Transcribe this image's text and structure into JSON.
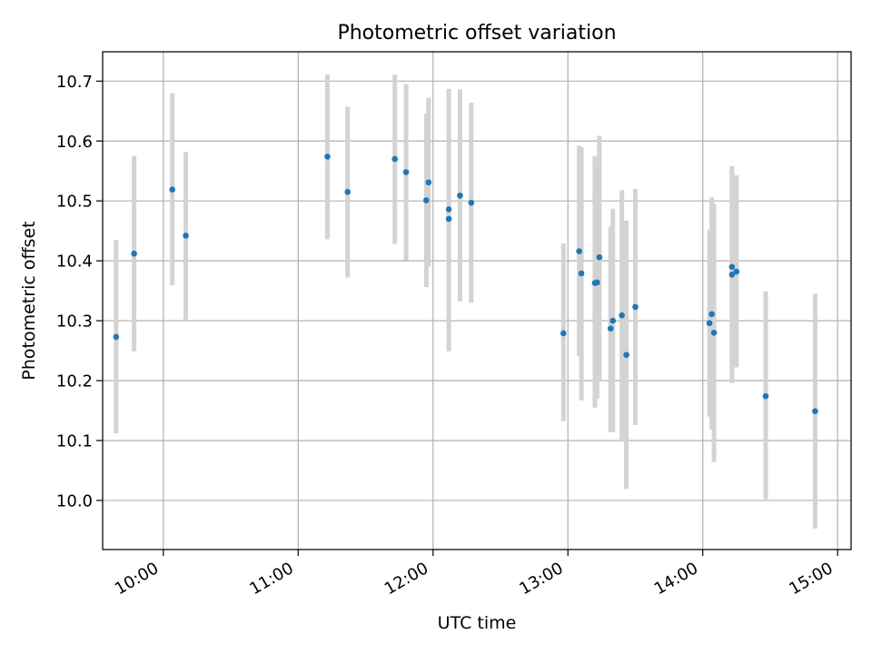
{
  "chart_data": {
    "type": "scatter",
    "title": "Photometric offset variation",
    "xlabel": "UTC time",
    "ylabel": "Photometric offset",
    "x_ticks": [
      "10:00",
      "11:00",
      "12:00",
      "13:00",
      "14:00",
      "15:00"
    ],
    "y_ticks": [
      "10.0",
      "10.1",
      "10.2",
      "10.3",
      "10.4",
      "10.5",
      "10.6",
      "10.7"
    ],
    "xlim": [
      "09:33",
      "15:06"
    ],
    "ylim": [
      9.918,
      10.749
    ],
    "grid": true,
    "marker_color": "#1f77b4",
    "errorbar_color": "#d3d3d3",
    "points": [
      {
        "t": "09:39",
        "y": 10.273,
        "lo": 10.112,
        "hi": 10.435
      },
      {
        "t": "09:47",
        "y": 10.412,
        "lo": 10.249,
        "hi": 10.575
      },
      {
        "t": "10:04",
        "y": 10.519,
        "lo": 10.359,
        "hi": 10.68
      },
      {
        "t": "10:10",
        "y": 10.442,
        "lo": 10.3,
        "hi": 10.582
      },
      {
        "t": "11:13",
        "y": 10.574,
        "lo": 10.436,
        "hi": 10.711
      },
      {
        "t": "11:22",
        "y": 10.515,
        "lo": 10.372,
        "hi": 10.657
      },
      {
        "t": "11:43",
        "y": 10.57,
        "lo": 10.428,
        "hi": 10.711
      },
      {
        "t": "11:48",
        "y": 10.548,
        "lo": 10.401,
        "hi": 10.695
      },
      {
        "t": "11:57",
        "y": 10.501,
        "lo": 10.356,
        "hi": 10.646
      },
      {
        "t": "11:58",
        "y": 10.531,
        "lo": 10.39,
        "hi": 10.672
      },
      {
        "t": "12:07",
        "y": 10.47,
        "lo": 10.249,
        "hi": 10.687
      },
      {
        "t": "12:07",
        "y": 10.486,
        "lo": 10.283,
        "hi": 10.687
      },
      {
        "t": "12:12",
        "y": 10.509,
        "lo": 10.332,
        "hi": 10.686
      },
      {
        "t": "12:17",
        "y": 10.497,
        "lo": 10.33,
        "hi": 10.664
      },
      {
        "t": "12:58",
        "y": 10.279,
        "lo": 10.132,
        "hi": 10.429
      },
      {
        "t": "13:05",
        "y": 10.416,
        "lo": 10.241,
        "hi": 10.592
      },
      {
        "t": "13:06",
        "y": 10.379,
        "lo": 10.167,
        "hi": 10.59
      },
      {
        "t": "13:12",
        "y": 10.363,
        "lo": 10.155,
        "hi": 10.575
      },
      {
        "t": "13:13",
        "y": 10.364,
        "lo": 10.17,
        "hi": 10.56
      },
      {
        "t": "13:14",
        "y": 10.406,
        "lo": 10.2,
        "hi": 10.609
      },
      {
        "t": "13:19",
        "y": 10.287,
        "lo": 10.114,
        "hi": 10.457
      },
      {
        "t": "13:20",
        "y": 10.3,
        "lo": 10.114,
        "hi": 10.487
      },
      {
        "t": "13:24",
        "y": 10.309,
        "lo": 10.1,
        "hi": 10.518
      },
      {
        "t": "13:26",
        "y": 10.243,
        "lo": 10.019,
        "hi": 10.467
      },
      {
        "t": "13:30",
        "y": 10.323,
        "lo": 10.126,
        "hi": 10.52
      },
      {
        "t": "14:03",
        "y": 10.296,
        "lo": 10.14,
        "hi": 10.452
      },
      {
        "t": "14:04",
        "y": 10.311,
        "lo": 10.118,
        "hi": 10.506
      },
      {
        "t": "14:05",
        "y": 10.28,
        "lo": 10.064,
        "hi": 10.495
      },
      {
        "t": "14:13",
        "y": 10.39,
        "lo": 10.222,
        "hi": 10.558
      },
      {
        "t": "14:13",
        "y": 10.377,
        "lo": 10.196,
        "hi": 10.558
      },
      {
        "t": "14:15",
        "y": 10.382,
        "lo": 10.222,
        "hi": 10.543
      },
      {
        "t": "14:28",
        "y": 10.174,
        "lo": 10.002,
        "hi": 10.349
      },
      {
        "t": "14:50",
        "y": 10.149,
        "lo": 9.953,
        "hi": 10.345
      }
    ]
  }
}
